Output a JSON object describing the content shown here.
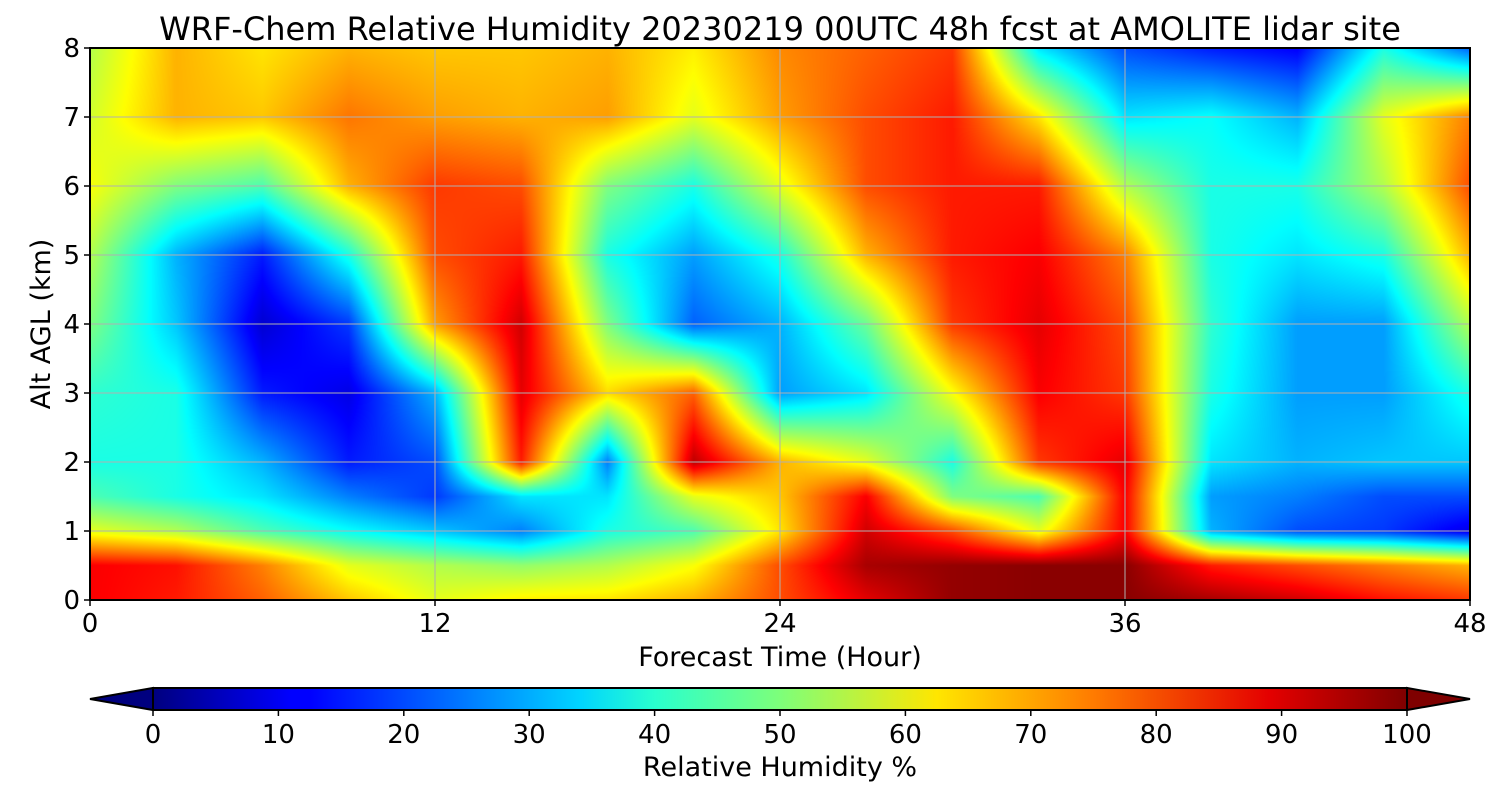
{
  "chart_data": {
    "type": "heatmap",
    "title": "WRF-Chem Relative Humidity 20230219 00UTC 48h fcst at AMOLITE lidar site",
    "xlabel": "Forecast Time (Hour)",
    "ylabel": "Alt AGL (km)",
    "xlim": [
      0,
      48
    ],
    "ylim": [
      0,
      8
    ],
    "xticks": [
      "0",
      "12",
      "24",
      "36",
      "48"
    ],
    "yticks": [
      "0",
      "1",
      "2",
      "3",
      "4",
      "5",
      "6",
      "7",
      "8"
    ],
    "grid": true,
    "colormap": "jet",
    "colorbar": {
      "label": "Relative Humidity %",
      "ticks": [
        "0",
        "10",
        "20",
        "30",
        "40",
        "50",
        "60",
        "70",
        "80",
        "90",
        "100"
      ],
      "range": [
        0,
        100
      ],
      "extend": "both",
      "orientation": "horizontal"
    },
    "x_hours": [
      0,
      3,
      6,
      9,
      12,
      15,
      18,
      21,
      24,
      27,
      30,
      33,
      36,
      39,
      42,
      45,
      48
    ],
    "y_km": [
      0,
      0.5,
      1,
      1.5,
      2,
      3,
      4,
      5,
      6,
      7,
      8
    ],
    "rh_percent": [
      [
        88,
        85,
        78,
        68,
        60,
        64,
        65,
        70,
        80,
        90,
        98,
        99,
        99,
        96,
        92,
        86,
        82
      ],
      [
        88,
        86,
        75,
        60,
        55,
        52,
        55,
        62,
        80,
        96,
        98,
        99,
        99,
        85,
        80,
        75,
        70
      ],
      [
        60,
        55,
        45,
        38,
        32,
        25,
        40,
        45,
        65,
        92,
        80,
        60,
        88,
        30,
        20,
        18,
        10
      ],
      [
        45,
        40,
        35,
        25,
        18,
        35,
        35,
        60,
        68,
        88,
        50,
        45,
        88,
        28,
        25,
        20,
        20
      ],
      [
        40,
        40,
        30,
        15,
        20,
        85,
        25,
        94,
        70,
        60,
        40,
        82,
        90,
        35,
        30,
        32,
        32
      ],
      [
        42,
        40,
        15,
        10,
        30,
        90,
        66,
        78,
        28,
        35,
        62,
        88,
        82,
        40,
        28,
        28,
        40
      ],
      [
        50,
        32,
        8,
        18,
        72,
        92,
        50,
        22,
        30,
        48,
        82,
        90,
        80,
        42,
        28,
        28,
        55
      ],
      [
        55,
        30,
        15,
        40,
        80,
        85,
        40,
        28,
        40,
        70,
        85,
        88,
        75,
        40,
        35,
        40,
        70
      ],
      [
        62,
        50,
        45,
        70,
        82,
        80,
        50,
        40,
        60,
        80,
        85,
        85,
        55,
        40,
        40,
        55,
        80
      ],
      [
        58,
        70,
        68,
        76,
        72,
        70,
        72,
        60,
        72,
        80,
        85,
        65,
        35,
        38,
        30,
        60,
        75
      ],
      [
        55,
        70,
        65,
        70,
        68,
        68,
        70,
        64,
        74,
        78,
        82,
        35,
        20,
        15,
        12,
        40,
        22
      ]
    ]
  }
}
